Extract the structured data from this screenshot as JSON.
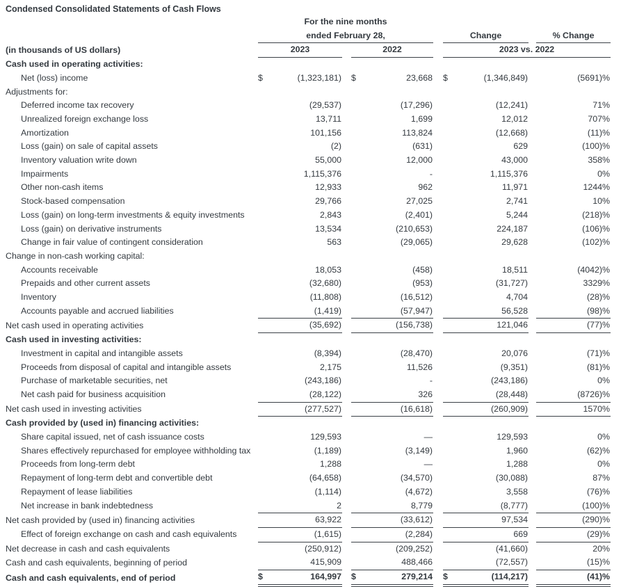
{
  "title": "Condensed Consolidated Statements of Cash Flows",
  "dollar_sign": "$",
  "colors": {
    "text": "#343a40",
    "rule": "#3a4046",
    "background": "#ffffff"
  },
  "header": {
    "period_line1": "For the nine months",
    "period_line2": "ended February 28,",
    "change_label": "Change",
    "pct_change_label": "% Change",
    "units_label": "(in thousands of US dollars)",
    "col_2023": "2023",
    "col_2022": "2022",
    "vs_label": "2023 vs. 2022"
  },
  "rows": [
    {
      "label": "Cash used in operating activities:",
      "type": "section",
      "indent": 0,
      "bold": true,
      "dollar": false,
      "v2023": "",
      "v2022": "",
      "change": "",
      "pct": "",
      "underline": "none"
    },
    {
      "label": "Net (loss) income",
      "type": "item",
      "indent": 1,
      "bold": false,
      "dollar": true,
      "v2023": "(1,323,181)",
      "v2022": "23,668",
      "change": "(1,346,849)",
      "pct": "(5691)%",
      "underline": "none"
    },
    {
      "label": "Adjustments for:",
      "type": "subheader",
      "indent": 0,
      "bold": false,
      "dollar": false,
      "v2023": "",
      "v2022": "",
      "change": "",
      "pct": "",
      "underline": "none"
    },
    {
      "label": "Deferred income tax recovery",
      "type": "item",
      "indent": 1,
      "bold": false,
      "dollar": false,
      "v2023": "(29,537)",
      "v2022": "(17,296)",
      "change": "(12,241)",
      "pct": "71%",
      "underline": "none"
    },
    {
      "label": "Unrealized foreign exchange loss",
      "type": "item",
      "indent": 1,
      "bold": false,
      "dollar": false,
      "v2023": "13,711",
      "v2022": "1,699",
      "change": "12,012",
      "pct": "707%",
      "underline": "none"
    },
    {
      "label": "Amortization",
      "type": "item",
      "indent": 1,
      "bold": false,
      "dollar": false,
      "v2023": "101,156",
      "v2022": "113,824",
      "change": "(12,668)",
      "pct": "(11)%",
      "underline": "none"
    },
    {
      "label": "Loss (gain) on sale of capital assets",
      "type": "item",
      "indent": 1,
      "bold": false,
      "dollar": false,
      "v2023": "(2)",
      "v2022": "(631)",
      "change": "629",
      "pct": "(100)%",
      "underline": "none"
    },
    {
      "label": "Inventory valuation write down",
      "type": "item",
      "indent": 1,
      "bold": false,
      "dollar": false,
      "v2023": "55,000",
      "v2022": "12,000",
      "change": "43,000",
      "pct": "358%",
      "underline": "none"
    },
    {
      "label": "Impairments",
      "type": "item",
      "indent": 1,
      "bold": false,
      "dollar": false,
      "v2023": "1,115,376",
      "v2022": "-",
      "change": "1,115,376",
      "pct": "0%",
      "underline": "none"
    },
    {
      "label": "Other non-cash items",
      "type": "item",
      "indent": 1,
      "bold": false,
      "dollar": false,
      "v2023": "12,933",
      "v2022": "962",
      "change": "11,971",
      "pct": "1244%",
      "underline": "none"
    },
    {
      "label": "Stock-based compensation",
      "type": "item",
      "indent": 1,
      "bold": false,
      "dollar": false,
      "v2023": "29,766",
      "v2022": "27,025",
      "change": "2,741",
      "pct": "10%",
      "underline": "none"
    },
    {
      "label": "Loss (gain) on long-term investments & equity investments",
      "type": "item",
      "indent": 1,
      "bold": false,
      "dollar": false,
      "v2023": "2,843",
      "v2022": "(2,401)",
      "change": "5,244",
      "pct": "(218)%",
      "underline": "none"
    },
    {
      "label": "Loss (gain) on derivative instruments",
      "type": "item",
      "indent": 1,
      "bold": false,
      "dollar": false,
      "v2023": "13,534",
      "v2022": "(210,653)",
      "change": "224,187",
      "pct": "(106)%",
      "underline": "none"
    },
    {
      "label": "Change in fair value of contingent consideration",
      "type": "item",
      "indent": 1,
      "bold": false,
      "dollar": false,
      "v2023": "563",
      "v2022": "(29,065)",
      "change": "29,628",
      "pct": "(102)%",
      "underline": "none"
    },
    {
      "label": "Change in non-cash working capital:",
      "type": "subheader",
      "indent": 0,
      "bold": false,
      "dollar": false,
      "v2023": "",
      "v2022": "",
      "change": "",
      "pct": "",
      "underline": "none"
    },
    {
      "label": "Accounts receivable",
      "type": "item",
      "indent": 1,
      "bold": false,
      "dollar": false,
      "v2023": "18,053",
      "v2022": "(458)",
      "change": "18,511",
      "pct": "(4042)%",
      "underline": "none"
    },
    {
      "label": "Prepaids and other current assets",
      "type": "item",
      "indent": 1,
      "bold": false,
      "dollar": false,
      "v2023": "(32,680)",
      "v2022": "(953)",
      "change": "(31,727)",
      "pct": "3329%",
      "underline": "none"
    },
    {
      "label": "Inventory",
      "type": "item",
      "indent": 1,
      "bold": false,
      "dollar": false,
      "v2023": "(11,808)",
      "v2022": "(16,512)",
      "change": "4,704",
      "pct": "(28)%",
      "underline": "none"
    },
    {
      "label": "Accounts payable and accrued liabilities",
      "type": "item",
      "indent": 1,
      "bold": false,
      "dollar": false,
      "v2023": "(1,419)",
      "v2022": "(57,947)",
      "change": "56,528",
      "pct": "(98)%",
      "underline": "single"
    },
    {
      "label": "Net cash used in operating activities",
      "type": "total",
      "indent": 0,
      "bold": false,
      "dollar": false,
      "v2023": "(35,692)",
      "v2022": "(156,738)",
      "change": "121,046",
      "pct": "(77)%",
      "underline": "single"
    },
    {
      "label": "Cash used in investing activities:",
      "type": "section",
      "indent": 0,
      "bold": true,
      "dollar": false,
      "v2023": "",
      "v2022": "",
      "change": "",
      "pct": "",
      "underline": "none"
    },
    {
      "label": "Investment in capital and intangible assets",
      "type": "item",
      "indent": 1,
      "bold": false,
      "dollar": false,
      "v2023": "(8,394)",
      "v2022": "(28,470)",
      "change": "20,076",
      "pct": "(71)%",
      "underline": "none"
    },
    {
      "label": "Proceeds from disposal of capital and intangible assets",
      "type": "item",
      "indent": 1,
      "bold": false,
      "dollar": false,
      "v2023": "2,175",
      "v2022": "11,526",
      "change": "(9,351)",
      "pct": "(81)%",
      "underline": "none"
    },
    {
      "label": "Purchase of marketable securities, net",
      "type": "item",
      "indent": 1,
      "bold": false,
      "dollar": false,
      "v2023": "(243,186)",
      "v2022": "-",
      "change": "(243,186)",
      "pct": "0%",
      "underline": "none"
    },
    {
      "label": "Net cash paid for business acquisition",
      "type": "item",
      "indent": 1,
      "bold": false,
      "dollar": false,
      "v2023": "(28,122)",
      "v2022": "326",
      "change": "(28,448)",
      "pct": "(8726)%",
      "underline": "single"
    },
    {
      "label": "Net cash used in investing activities",
      "type": "total",
      "indent": 0,
      "bold": false,
      "dollar": false,
      "v2023": "(277,527)",
      "v2022": "(16,618)",
      "change": "(260,909)",
      "pct": "1570%",
      "underline": "single"
    },
    {
      "label": "Cash provided by (used in) financing activities:",
      "type": "section",
      "indent": 0,
      "bold": true,
      "dollar": false,
      "v2023": "",
      "v2022": "",
      "change": "",
      "pct": "",
      "underline": "none"
    },
    {
      "label": "Share capital issued, net of cash issuance costs",
      "type": "item",
      "indent": 1,
      "bold": false,
      "dollar": false,
      "v2023": "129,593",
      "v2022": "—",
      "change": "129,593",
      "pct": "0%",
      "underline": "none"
    },
    {
      "label": "Shares effectively repurchased for employee withholding tax",
      "type": "item",
      "indent": 1,
      "bold": false,
      "dollar": false,
      "v2023": "(1,189)",
      "v2022": "(3,149)",
      "change": "1,960",
      "pct": "(62)%",
      "underline": "none"
    },
    {
      "label": "Proceeds from long-term debt",
      "type": "item",
      "indent": 1,
      "bold": false,
      "dollar": false,
      "v2023": "1,288",
      "v2022": "—",
      "change": "1,288",
      "pct": "0%",
      "underline": "none"
    },
    {
      "label": "Repayment of long-term debt and convertible debt",
      "type": "item",
      "indent": 1,
      "bold": false,
      "dollar": false,
      "v2023": "(64,658)",
      "v2022": "(34,570)",
      "change": "(30,088)",
      "pct": "87%",
      "underline": "none"
    },
    {
      "label": "Repayment of lease liabilities",
      "type": "item",
      "indent": 1,
      "bold": false,
      "dollar": false,
      "v2023": "(1,114)",
      "v2022": "(4,672)",
      "change": "3,558",
      "pct": "(76)%",
      "underline": "none"
    },
    {
      "label": "Net increase in bank indebtedness",
      "type": "item",
      "indent": 1,
      "bold": false,
      "dollar": false,
      "v2023": "2",
      "v2022": "8,779",
      "change": "(8,777)",
      "pct": "(100)%",
      "underline": "single"
    },
    {
      "label": "Net cash provided by (used in) financing activities",
      "type": "total",
      "indent": 0,
      "bold": false,
      "dollar": false,
      "v2023": "63,922",
      "v2022": "(33,612)",
      "change": "97,534",
      "pct": "(290)%",
      "underline": "single"
    },
    {
      "label": "Effect of foreign exchange on cash and cash equivalents",
      "type": "item",
      "indent": 1,
      "bold": false,
      "dollar": false,
      "v2023": "(1,615)",
      "v2022": "(2,284)",
      "change": "669",
      "pct": "(29)%",
      "underline": "single"
    },
    {
      "label": "Net decrease in cash and cash equivalents",
      "type": "total",
      "indent": 0,
      "bold": false,
      "dollar": false,
      "v2023": "(250,912)",
      "v2022": "(209,252)",
      "change": "(41,660)",
      "pct": "20%",
      "underline": "none"
    },
    {
      "label": "Cash and cash equivalents, beginning of period",
      "type": "total",
      "indent": 0,
      "bold": false,
      "dollar": false,
      "v2023": "415,909",
      "v2022": "488,466",
      "change": "(72,557)",
      "pct": "(15)%",
      "underline": "single"
    },
    {
      "label": "Cash and cash equivalents, end of period",
      "type": "total",
      "indent": 0,
      "bold": true,
      "dollar": true,
      "v2023": "164,997",
      "v2022": "279,214",
      "change": "(114,217)",
      "pct": "(41)%",
      "underline": "double"
    }
  ]
}
